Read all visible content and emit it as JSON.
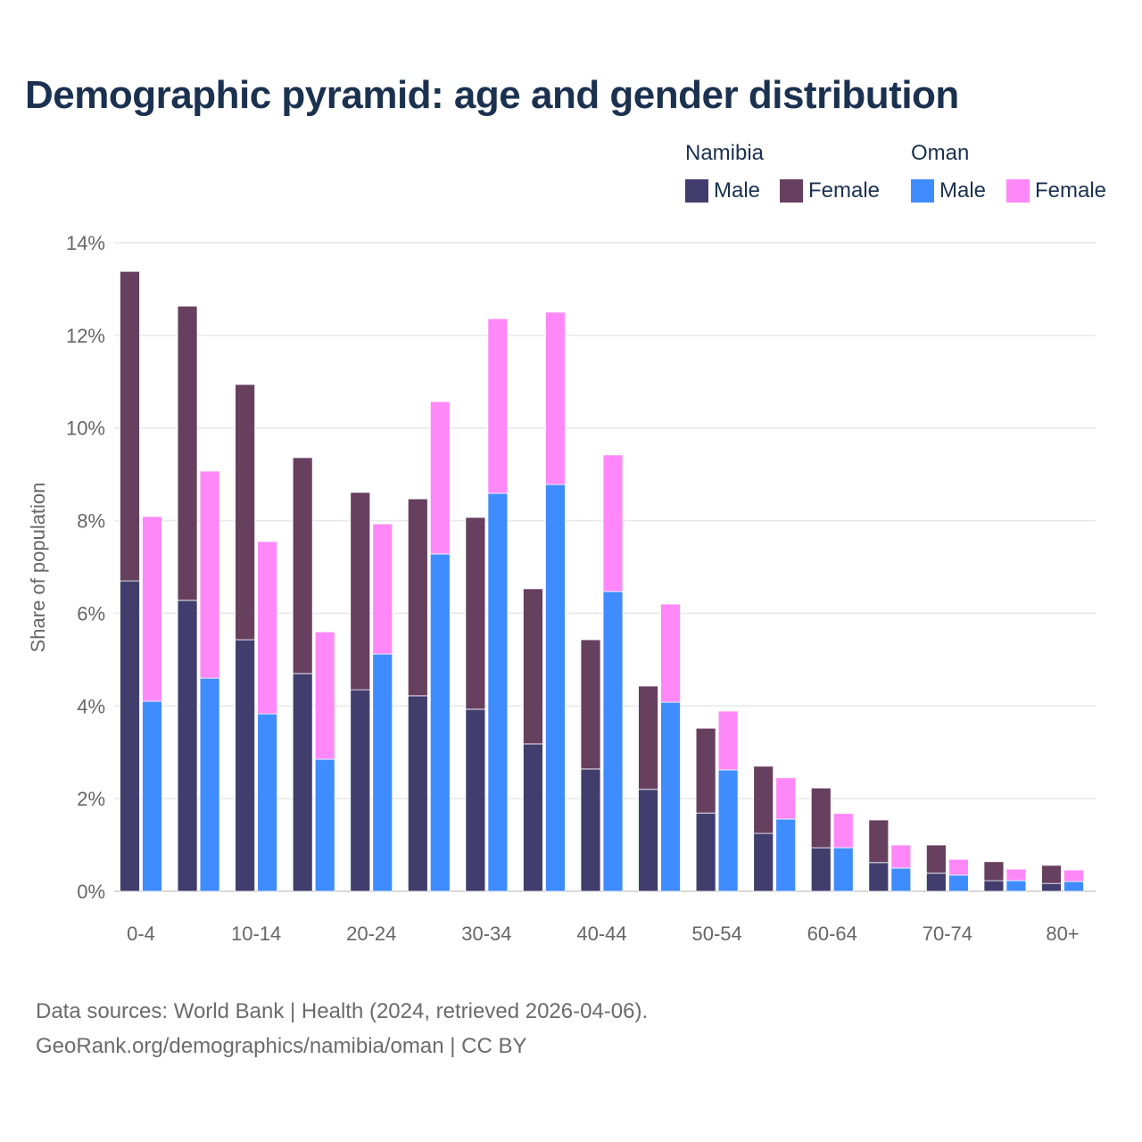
{
  "chart_data": {
    "type": "bar",
    "stacked": true,
    "title": "Demographic pyramid: age and gender distribution",
    "ylabel": "Share of population",
    "xlabel": "",
    "ylim": [
      0,
      14
    ],
    "yticks": [
      "0%",
      "2%",
      "4%",
      "6%",
      "8%",
      "10%",
      "12%",
      "14%"
    ],
    "yticks_values": [
      0,
      2,
      4,
      6,
      8,
      10,
      12,
      14
    ],
    "categories": [
      "0-4",
      "5-9",
      "10-14",
      "15-19",
      "20-24",
      "25-29",
      "30-34",
      "35-39",
      "40-44",
      "45-49",
      "50-54",
      "55-59",
      "60-64",
      "65-69",
      "70-74",
      "75-79",
      "80+"
    ],
    "xtick_labels_shown": [
      "0-4",
      "10-14",
      "20-24",
      "30-34",
      "40-44",
      "50-54",
      "60-64",
      "70-74",
      "80+"
    ],
    "grid": true,
    "legend_placement": "top-right",
    "countries": [
      {
        "name": "Namibia",
        "series": [
          {
            "name": "Male",
            "color": "#413e6e",
            "values": [
              6.7,
              6.28,
              5.43,
              4.7,
              4.35,
              4.22,
              3.93,
              3.18,
              2.64,
              2.2,
              1.69,
              1.25,
              0.94,
              0.62,
              0.39,
              0.23,
              0.17
            ]
          },
          {
            "name": "Female",
            "color": "#673f5f",
            "values": [
              6.68,
              6.35,
              5.51,
              4.66,
              4.26,
              4.25,
              4.14,
              3.35,
              2.79,
              2.23,
              1.83,
              1.45,
              1.29,
              0.92,
              0.61,
              0.41,
              0.39
            ]
          }
        ]
      },
      {
        "name": "Oman",
        "series": [
          {
            "name": "Male",
            "color": "#3f8cff",
            "values": [
              4.1,
              4.6,
              3.83,
              2.85,
              5.12,
              7.28,
              8.59,
              8.78,
              6.47,
              4.08,
              2.62,
              1.56,
              0.94,
              0.5,
              0.35,
              0.23,
              0.21
            ]
          },
          {
            "name": "Female",
            "color": "#ff88f8",
            "values": [
              3.99,
              4.47,
              3.72,
              2.75,
              2.81,
              3.29,
              3.77,
              3.72,
              2.95,
              2.12,
              1.27,
              0.89,
              0.74,
              0.5,
              0.34,
              0.25,
              0.25
            ]
          }
        ]
      }
    ]
  },
  "footer": {
    "line1": "Data sources: World Bank | Health (2024, retrieved 2026-04-06).",
    "line2": "GeoRank.org/demographics/namibia/oman | CC BY"
  }
}
